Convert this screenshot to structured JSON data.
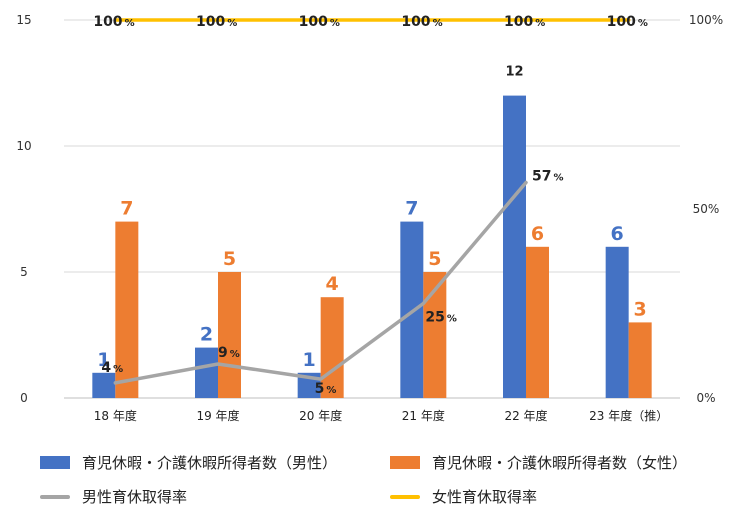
{
  "chart_data": {
    "type": "bar",
    "categories": [
      "18 年度",
      "19 年度",
      "20 年度",
      "21 年度",
      "22 年度",
      "23 年度（推）"
    ],
    "series": [
      {
        "name": "育児休暇・介護休暇所得者数（男性）",
        "kind": "bar",
        "color": "#4472c4",
        "values": [
          1,
          2,
          1,
          7,
          12,
          6
        ]
      },
      {
        "name": "育児休暇・介護休暇所得者数（女性）",
        "kind": "bar",
        "color": "#ed7d31",
        "values": [
          7,
          5,
          4,
          5,
          6,
          3
        ]
      },
      {
        "name": "男性育休取得率",
        "kind": "line",
        "axis": "right",
        "color": "#a5a5a5",
        "values": [
          4,
          9,
          5,
          25,
          57,
          null
        ]
      },
      {
        "name": "女性育休取得率",
        "kind": "line",
        "axis": "right",
        "color": "#ffc000",
        "values": [
          100,
          100,
          100,
          100,
          100,
          100
        ]
      }
    ],
    "y_left": {
      "min": 0,
      "max": 15,
      "ticks": [
        "0",
        "5",
        "10",
        "15"
      ]
    },
    "y_right": {
      "min": 0,
      "max": 100,
      "ticks": [
        "0%",
        "50%",
        "100%"
      ]
    },
    "percent_unit": "%",
    "gridlines": true,
    "legend_position": "bottom"
  }
}
